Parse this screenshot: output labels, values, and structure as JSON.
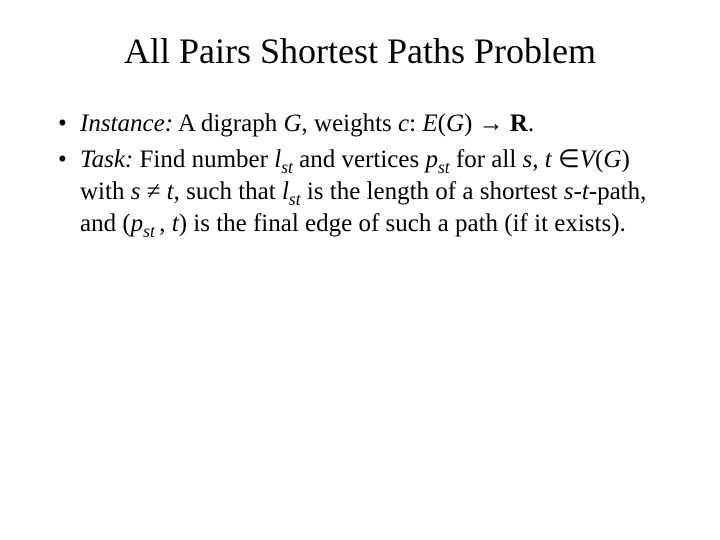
{
  "title": "All Pairs Shortest Paths Problem",
  "bullets": {
    "instance": {
      "lead": "Instance:",
      "p1": " A digraph ",
      "G": "G",
      "p2": ", weights ",
      "c": "c",
      "colon": ": ",
      "E": "E",
      "lpar": "(",
      "G2": "G",
      "rpar": ") → ",
      "R": "R",
      "dot": "."
    },
    "task": {
      "lead": "Task:",
      "p1": " Find number ",
      "l": "l",
      "st1": "st",
      "p2": " and vertices ",
      "pvar": "p",
      "st2": "st",
      "p3": " for all ",
      "s": "s",
      "comma1": ", ",
      "t": "t",
      "in": " ∈",
      "V": "V",
      "lpar": "(",
      "G": "G",
      "rpar": ") with ",
      "s2": "s",
      "neq": " ≠ ",
      "t2": "t",
      "p4": ", such that ",
      "l2": "l",
      "st3": "st",
      "p5": " is the length of a shortest ",
      "s3": "s",
      "dash1": "-",
      "t3": "t",
      "p6": "-path, and (",
      "pvar2": "p",
      "st4": "st ",
      "comma2": ", ",
      "t4": "t",
      "p7": ") is the final edge of such a path (if it exists)."
    }
  },
  "style": {
    "background": "#ffffff",
    "text_color": "#000000",
    "title_fontsize": 36,
    "body_fontsize": 25,
    "font_family": "Times New Roman"
  }
}
